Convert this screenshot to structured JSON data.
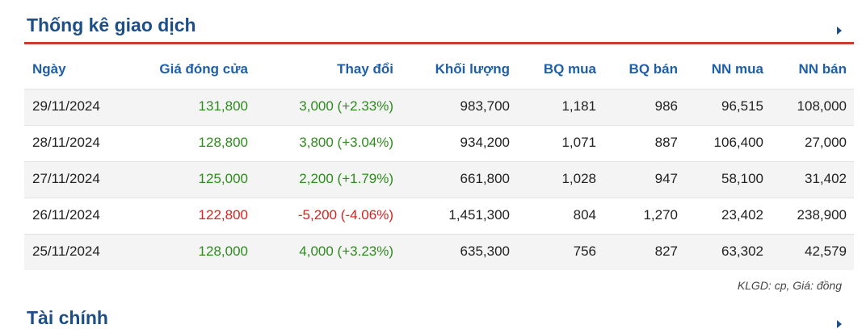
{
  "header": {
    "title": "Thống kê giao dịch"
  },
  "table": {
    "columns": [
      "Ngày",
      "Giá đóng cửa",
      "Thay đổi",
      "Khối lượng",
      "BQ mua",
      "BQ bán",
      "NN mua",
      "NN bán"
    ],
    "rows": [
      [
        "29/11/2024",
        "131,800",
        "3,000 (+2.33%)",
        "983,700",
        "1,181",
        "986",
        "96,515",
        "108,000"
      ],
      [
        "28/11/2024",
        "128,800",
        "3,800 (+3.04%)",
        "934,200",
        "1,071",
        "887",
        "106,400",
        "27,000"
      ],
      [
        "27/11/2024",
        "125,000",
        "2,200 (+1.79%)",
        "661,800",
        "1,028",
        "947",
        "58,100",
        "31,402"
      ],
      [
        "26/11/2024",
        "122,800",
        "-5,200 (-4.06%)",
        "1,451,300",
        "804",
        "1,270",
        "23,402",
        "238,900"
      ],
      [
        "25/11/2024",
        "128,000",
        "4,000 (+3.23%)",
        "635,300",
        "756",
        "827",
        "63,302",
        "42,579"
      ]
    ],
    "row_colors": [
      "#2e8b1e",
      "#2e8b1e",
      "#2e8b1e",
      "#e02020",
      "#2e8b1e"
    ]
  },
  "note": "KLGD: cp, Giá: đồng",
  "next_section": {
    "title": "Tài chính"
  }
}
